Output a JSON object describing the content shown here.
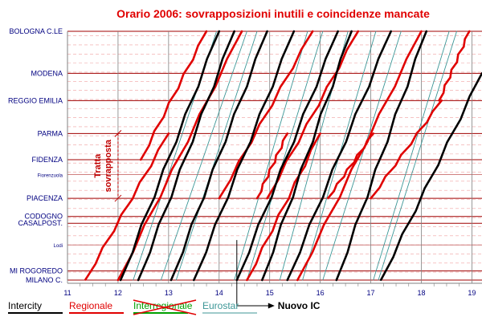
{
  "chart_data": {
    "type": "line",
    "title": "Orario 2006: sovrapposizioni inutili e coincidenze mancate",
    "x_axis": {
      "min": 11.0,
      "max": 19.2,
      "ticks": [
        "11",
        "12",
        "13",
        "14",
        "15",
        "16",
        "17",
        "18",
        "19"
      ]
    },
    "grid": true,
    "stations": [
      {
        "name": "BOLOGNA C.LE",
        "km": 0,
        "small": false
      },
      {
        "name": "MODENA",
        "km": 37,
        "small": false
      },
      {
        "name": "REGGIO EMILIA",
        "km": 61,
        "small": false
      },
      {
        "name": "PARMA",
        "km": 90,
        "small": false
      },
      {
        "name": "FIDENZA",
        "km": 113,
        "small": false
      },
      {
        "name": "Fiorenzuola",
        "km": 126,
        "small": true
      },
      {
        "name": "PIACENZA",
        "km": 147,
        "small": false
      },
      {
        "name": "CODOGNO",
        "km": 163,
        "small": false
      },
      {
        "name": "CASALPOST.",
        "km": 169,
        "small": false
      },
      {
        "name": "Lodi",
        "km": 188,
        "small": true
      },
      {
        "name": "MI ROGOREDO",
        "km": 211,
        "small": false
      },
      {
        "name": "MILANO C.",
        "km": 219,
        "small": false
      }
    ],
    "bracket_annotation": {
      "lines": [
        "Tratta",
        "sovrapposta"
      ],
      "time": 12.0,
      "from_station": "PARMA",
      "to_station": "PIACENZA"
    },
    "callout": {
      "label": "Nuovo IC",
      "time": 14.35,
      "from_km": 188
    },
    "colors": {
      "Intercity": "#000000",
      "Regionale": "#e00000",
      "Eurostar": "#3c9696",
      "Interregionale": "#00a000",
      "title": "#e00000",
      "station_text": "#000080",
      "station_line": "#a00000",
      "grid_vertical": "#808080",
      "grid_dashed": "#f0a0a0"
    },
    "legend": [
      {
        "label": "Intercity",
        "color": "#000000",
        "struck": false
      },
      {
        "label": "Regionale",
        "color": "#e00000",
        "struck": false
      },
      {
        "label": "Interregionale",
        "color": "#00a000",
        "struck": true
      },
      {
        "label": "Eurostar",
        "color": "#3c9696",
        "struck": false
      }
    ],
    "series": [
      {
        "name": "Intercity",
        "trains": [
          {
            "from_km": 0,
            "to_km": 219,
            "dep": 14.0,
            "arr": 12.05
          },
          {
            "from_km": 0,
            "to_km": 219,
            "dep": 14.3,
            "arr": 12.4
          },
          {
            "from_km": 0,
            "to_km": 219,
            "dep": 14.95,
            "arr": 13.05
          },
          {
            "from_km": 0,
            "to_km": 219,
            "dep": 15.48,
            "arr": 13.5
          },
          {
            "from_km": 0,
            "to_km": 219,
            "dep": 16.35,
            "arr": 14.35
          },
          {
            "from_km": 0,
            "to_km": 219,
            "dep": 16.62,
            "arr": 14.85
          },
          {
            "from_km": 0,
            "to_km": 219,
            "dep": 17.4,
            "arr": 15.35
          },
          {
            "from_km": 0,
            "to_km": 219,
            "dep": 18.1,
            "arr": 16.32
          },
          {
            "from_km": 37,
            "to_km": 219,
            "dep": 19.2,
            "arr": 17.2
          }
        ]
      },
      {
        "name": "Regionale",
        "trains": [
          {
            "from_km": 90,
            "to_km": 219,
            "dep": 13.0,
            "arr": 11.35
          },
          {
            "from_km": 0,
            "to_km": 113,
            "dep": 13.75,
            "arr": 12.45
          },
          {
            "from_km": 0,
            "to_km": 219,
            "dep": 14.45,
            "arr": 12.0
          },
          {
            "from_km": 0,
            "to_km": 147,
            "dep": 15.85,
            "arr": 14.0
          },
          {
            "from_km": 0,
            "to_km": 147,
            "dep": 16.75,
            "arr": 14.95
          },
          {
            "from_km": 90,
            "to_km": 147,
            "dep": 15.35,
            "arr": 14.75
          },
          {
            "from_km": 90,
            "to_km": 219,
            "dep": 16.0,
            "arr": 14.55
          },
          {
            "from_km": 0,
            "to_km": 219,
            "dep": 18.0,
            "arr": 15.55
          },
          {
            "from_km": 61,
            "to_km": 147,
            "dep": 18.4,
            "arr": 17.0
          },
          {
            "from_km": 0,
            "to_km": 61,
            "dep": 18.95,
            "arr": 18.35
          },
          {
            "from_km": 90,
            "to_km": 147,
            "dep": 17.05,
            "arr": 16.15
          }
        ]
      },
      {
        "name": "Eurostar",
        "trains": [
          {
            "from_km": 0,
            "to_km": 219,
            "dep": 13.95,
            "arr": 12.3
          },
          {
            "from_km": 0,
            "to_km": 219,
            "dep": 14.55,
            "arr": 12.85
          },
          {
            "from_km": 0,
            "to_km": 219,
            "dep": 14.75,
            "arr": 13.15
          },
          {
            "from_km": 0,
            "to_km": 219,
            "dep": 15.75,
            "arr": 14.3
          },
          {
            "from_km": 0,
            "to_km": 219,
            "dep": 16.05,
            "arr": 14.55
          },
          {
            "from_km": 0,
            "to_km": 219,
            "dep": 16.55,
            "arr": 15.2
          },
          {
            "from_km": 0,
            "to_km": 219,
            "dep": 17.1,
            "arr": 15.65
          },
          {
            "from_km": 0,
            "to_km": 219,
            "dep": 17.6,
            "arr": 16.05
          },
          {
            "from_km": 0,
            "to_km": 219,
            "dep": 18.55,
            "arr": 17.05
          },
          {
            "from_km": 0,
            "to_km": 219,
            "dep": 18.7,
            "arr": 17.15
          }
        ]
      }
    ]
  }
}
